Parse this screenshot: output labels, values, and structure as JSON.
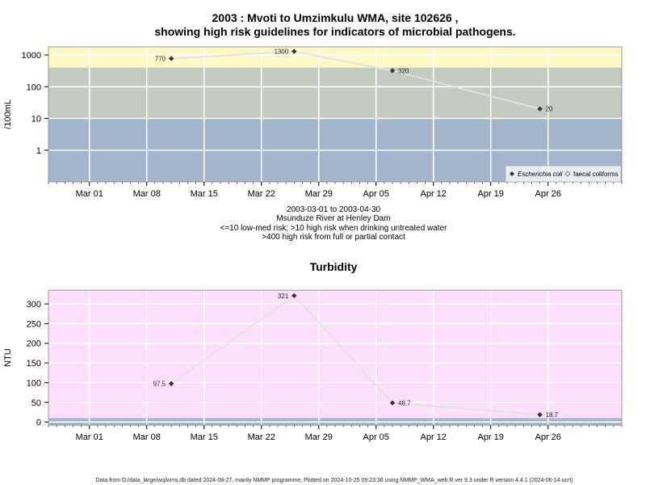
{
  "chart_data": [
    {
      "type": "line",
      "title": "2003 : Mvoti to Umzimkulu WMA, site 102626 ,",
      "subtitle": "showing high risk guidelines for indicators of microbial pathogens.",
      "ylabel": "/100mL",
      "yscale": "log",
      "ylim": [
        0.1,
        1800
      ],
      "yticks": [
        "1",
        "10",
        "100",
        "1000"
      ],
      "xlim": [
        "2003-02-24",
        "2003-05-05"
      ],
      "xticks": [
        "Mar 01",
        "Mar 08",
        "Mar 15",
        "Mar 22",
        "Mar 29",
        "Apr 05",
        "Apr 12",
        "Apr 19",
        "Apr 26"
      ],
      "xtick_dates": [
        "2003-03-01",
        "2003-03-08",
        "2003-03-15",
        "2003-03-22",
        "2003-03-29",
        "2003-04-05",
        "2003-04-12",
        "2003-04-19",
        "2003-04-26"
      ],
      "bands": [
        {
          "from": 0.1,
          "to": 10,
          "color": "#a3b4cd"
        },
        {
          "from": 10,
          "to": 400,
          "color": "#c3cbc0"
        },
        {
          "from": 400,
          "to": 1800,
          "color": "#fdf8c6"
        }
      ],
      "series": [
        {
          "name": "Escherichia coli",
          "x": [
            "2003-03-11",
            "2003-03-26",
            "2003-04-07",
            "2003-04-25"
          ],
          "y": [
            770,
            1300,
            320,
            20
          ],
          "labels": [
            "770",
            "1300",
            "320",
            "20"
          ],
          "label_side": [
            "left",
            "left",
            "right",
            "right"
          ]
        }
      ],
      "legend": {
        "position": "bottom-right",
        "entries": [
          "Escherichia coli",
          "faecal coliforms"
        ]
      },
      "caption": [
        "2003-03-01 to 2003-04-30",
        "Msunduze River at Henley Dam",
        "<=10 low-med risk; >10 high risk when drinking untreated water",
        ">400 high risk from full or partial contact"
      ]
    },
    {
      "type": "line",
      "title": "Turbidity",
      "ylabel": "NTU",
      "ylim": [
        -8,
        335
      ],
      "yticks": [
        "0",
        "50",
        "100",
        "150",
        "200",
        "250",
        "300"
      ],
      "xlim": [
        "2003-02-24",
        "2003-05-05"
      ],
      "xticks": [
        "Mar 01",
        "Mar 08",
        "Mar 15",
        "Mar 22",
        "Mar 29",
        "Apr 05",
        "Apr 12",
        "Apr 19",
        "Apr 26"
      ],
      "xtick_dates": [
        "2003-03-01",
        "2003-03-08",
        "2003-03-15",
        "2003-03-22",
        "2003-03-29",
        "2003-04-05",
        "2003-04-12",
        "2003-04-19",
        "2003-04-26"
      ],
      "bands": [
        {
          "from": -8,
          "to": 10,
          "color": "#a3b4cd"
        },
        {
          "from": 10,
          "to": 335,
          "color": "#fddefc"
        }
      ],
      "series": [
        {
          "name": "Turbidity",
          "x": [
            "2003-03-11",
            "2003-03-26",
            "2003-04-07",
            "2003-04-25"
          ],
          "y": [
            97.5,
            321,
            48.7,
            18.7
          ],
          "labels": [
            "97.5",
            "321",
            "48.7",
            "18.7"
          ],
          "label_side": [
            "left",
            "left",
            "right",
            "right"
          ]
        }
      ]
    }
  ],
  "footer": "Data from D:/data_large/wq/wms.db dated 2024-08-27, mainly NMMP programme. Plotted on 2024-10-25 09:23:36 using NMMP_WMA_web.R ver 9.3 under R version 4.4.1 (2024-06-14 ucrt)",
  "colors": {
    "line": "#e2e2e2",
    "grid": "#ffffff",
    "frame": "#999999",
    "marker": "#333333"
  }
}
